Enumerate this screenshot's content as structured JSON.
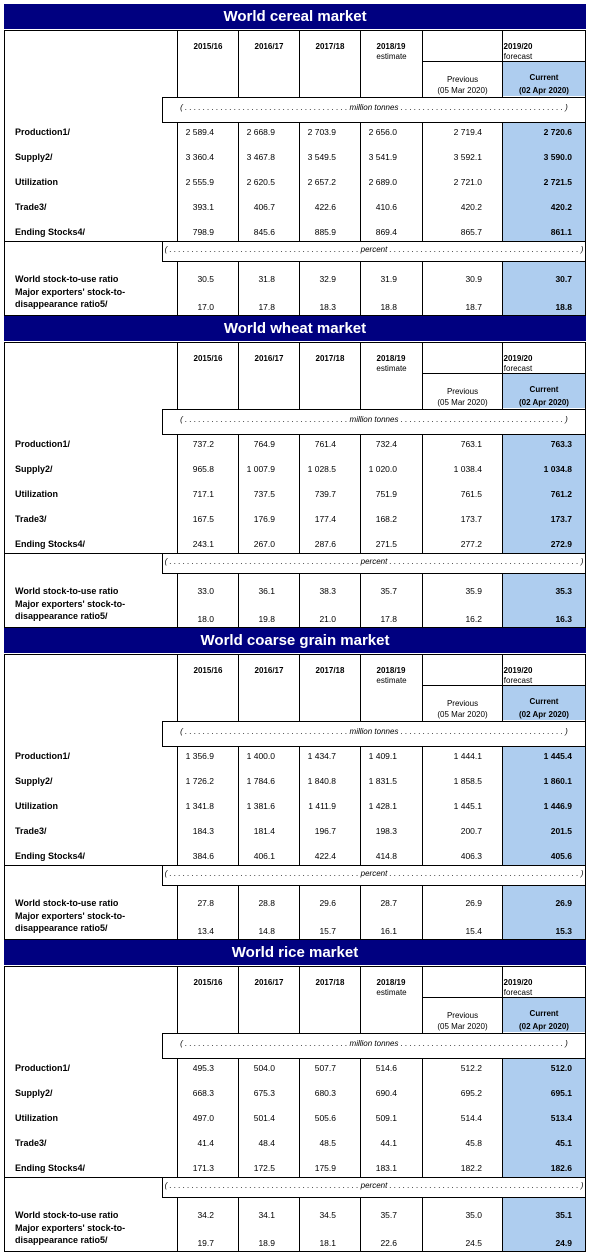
{
  "headers": {
    "years": [
      "2015/16",
      "2016/17",
      "2017/18",
      "2018/19"
    ],
    "estimate_label": "estimate",
    "forecast_year": "2019/20",
    "forecast_label": "forecast",
    "previous_label": "Previous",
    "previous_date": "(05 Mar 2020)",
    "current_label": "Current",
    "current_date": "(02 Apr 2020)",
    "unit_tonnes": "( . . . . . . . . . . . . . . . . . . . . . . . . . . . . . . . . . . . . . million tonnes . . . . . . . . . . . . . . . . . . . . . . . . . . . . . . . . . . . . . )",
    "unit_percent": "( . . . . . . . . . . . . . . . . . . . . . . . . . . . . . . . . . . . . . . . . . . . percent . . . . . . . . . . . . . . . . . . . . . . . . . . . . . . . . . . . . . . . . . . . )"
  },
  "row_labels": {
    "production": "Production1/",
    "supply": "Supply2/",
    "utilization": "Utilization",
    "trade": "Trade3/",
    "ending_stocks": "Ending Stocks4/",
    "stock_to_use": "World stock-to-use ratio",
    "exporters_line1": "Major exporters' stock-to-",
    "exporters_line2": "disappearance ratio5/"
  },
  "markets": [
    {
      "title": "World cereal market",
      "rows": [
        [
          "2 589.4",
          "2 668.9",
          "2 703.9",
          "2 656.0",
          "2 719.4",
          "2 720.6"
        ],
        [
          "3 360.4",
          "3 467.8",
          "3 549.5",
          "3 541.9",
          "3 592.1",
          "3 590.0"
        ],
        [
          "2 555.9",
          "2 620.5",
          "2 657.2",
          "2 689.0",
          "2 721.0",
          "2 721.5"
        ],
        [
          "393.1",
          "406.7",
          "422.6",
          "410.6",
          "420.2",
          "420.2"
        ],
        [
          "798.9",
          "845.6",
          "885.9",
          "869.4",
          "865.7",
          "861.1"
        ],
        [
          "30.5",
          "31.8",
          "32.9",
          "31.9",
          "30.9",
          "30.7"
        ],
        [
          "17.0",
          "17.8",
          "18.3",
          "18.8",
          "18.7",
          "18.8"
        ]
      ]
    },
    {
      "title": "World wheat market",
      "rows": [
        [
          "737.2",
          "764.9",
          "761.4",
          "732.4",
          "763.1",
          "763.3"
        ],
        [
          "965.8",
          "1 007.9",
          "1 028.5",
          "1 020.0",
          "1 038.4",
          "1 034.8"
        ],
        [
          "717.1",
          "737.5",
          "739.7",
          "751.9",
          "761.5",
          "761.2"
        ],
        [
          "167.5",
          "176.9",
          "177.4",
          "168.2",
          "173.7",
          "173.7"
        ],
        [
          "243.1",
          "267.0",
          "287.6",
          "271.5",
          "277.2",
          "272.9"
        ],
        [
          "33.0",
          "36.1",
          "38.3",
          "35.7",
          "35.9",
          "35.3"
        ],
        [
          "18.0",
          "19.8",
          "21.0",
          "17.8",
          "16.2",
          "16.3"
        ]
      ]
    },
    {
      "title": "World coarse grain market",
      "rows": [
        [
          "1 356.9",
          "1 400.0",
          "1 434.7",
          "1 409.1",
          "1 444.1",
          "1 445.4"
        ],
        [
          "1 726.2",
          "1 784.6",
          "1 840.8",
          "1 831.5",
          "1 858.5",
          "1 860.1"
        ],
        [
          "1 341.8",
          "1 381.6",
          "1 411.9",
          "1 428.1",
          "1 445.1",
          "1 446.9"
        ],
        [
          "184.3",
          "181.4",
          "196.7",
          "198.3",
          "200.7",
          "201.5"
        ],
        [
          "384.6",
          "406.1",
          "422.4",
          "414.8",
          "406.3",
          "405.6"
        ],
        [
          "27.8",
          "28.8",
          "29.6",
          "28.7",
          "26.9",
          "26.9"
        ],
        [
          "13.4",
          "14.8",
          "15.7",
          "16.1",
          "15.4",
          "15.3"
        ]
      ]
    },
    {
      "title": "World rice market",
      "rows": [
        [
          "495.3",
          "504.0",
          "507.7",
          "514.6",
          "512.2",
          "512.0"
        ],
        [
          "668.3",
          "675.3",
          "680.3",
          "690.4",
          "695.2",
          "695.1"
        ],
        [
          "497.0",
          "501.4",
          "505.6",
          "509.1",
          "514.4",
          "513.4"
        ],
        [
          "41.4",
          "48.4",
          "48.5",
          "44.1",
          "45.8",
          "45.1"
        ],
        [
          "171.3",
          "172.5",
          "175.9",
          "183.1",
          "182.2",
          "182.6"
        ],
        [
          "34.2",
          "34.1",
          "34.5",
          "35.7",
          "35.0",
          "35.1"
        ],
        [
          "19.7",
          "18.9",
          "18.1",
          "22.6",
          "24.5",
          "24.9"
        ]
      ]
    }
  ]
}
